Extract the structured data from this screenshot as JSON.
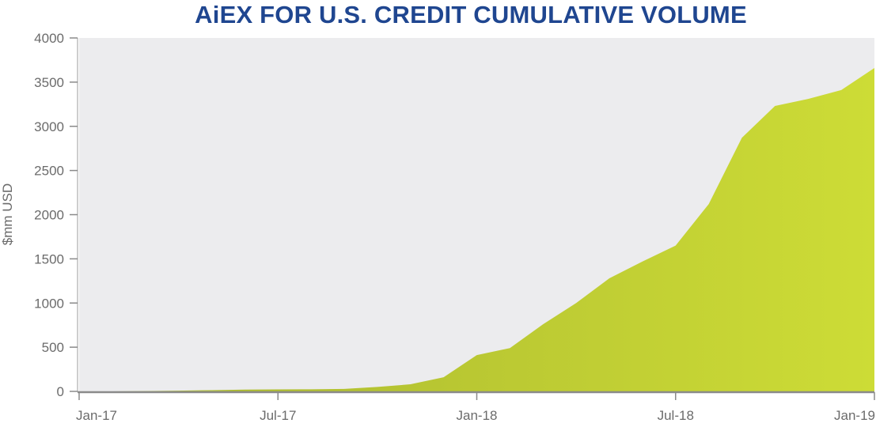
{
  "chart_data": {
    "type": "area",
    "title": "AiEX FOR U.S. CREDIT CUMULATIVE VOLUME",
    "ylabel": "$mm USD",
    "xlabel": "",
    "ylim": [
      0,
      4000
    ],
    "yticks": [
      0,
      500,
      1000,
      1500,
      2000,
      2500,
      3000,
      3500,
      4000
    ],
    "xticks": [
      "Jan-17",
      "Jul-17",
      "Jan-18",
      "Jul-18",
      "Jan-19"
    ],
    "x_range": [
      "2017-01",
      "2019-01"
    ],
    "grid": false,
    "colors": {
      "title": "#1f4690",
      "plot_background": "#ececee",
      "area_left": "#a7b62e",
      "area_right": "#cddc36",
      "axis": "#8a8a8a",
      "text": "#6b6b6b"
    },
    "series": [
      {
        "x": [
          "2017-01",
          "2017-02",
          "2017-03",
          "2017-04",
          "2017-05",
          "2017-06",
          "2017-07",
          "2017-08",
          "2017-09",
          "2017-10",
          "2017-11",
          "2017-12",
          "2018-01",
          "2018-02",
          "2018-03",
          "2018-04",
          "2018-05",
          "2018-06",
          "2018-07",
          "2018-08",
          "2018-09",
          "2018-10",
          "2018-11",
          "2018-12",
          "2019-01"
        ],
        "values": [
          0,
          0,
          3,
          8,
          14,
          20,
          22,
          24,
          28,
          50,
          80,
          160,
          410,
          490,
          760,
          1000,
          1280,
          1470,
          1650,
          2120,
          2870,
          3230,
          3310,
          3410,
          3660
        ]
      }
    ]
  }
}
